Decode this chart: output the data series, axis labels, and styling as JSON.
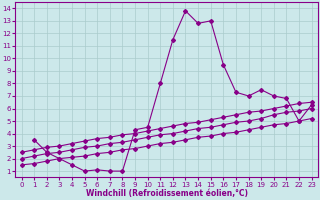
{
  "xlabel": "Windchill (Refroidissement éolien,°C)",
  "xlim": [
    -0.5,
    23.5
  ],
  "ylim": [
    0.5,
    14.5
  ],
  "xticks": [
    0,
    1,
    2,
    3,
    4,
    5,
    6,
    7,
    8,
    9,
    10,
    11,
    12,
    13,
    14,
    15,
    16,
    17,
    18,
    19,
    20,
    21,
    22,
    23
  ],
  "yticks": [
    1,
    2,
    3,
    4,
    5,
    6,
    7,
    8,
    9,
    10,
    11,
    12,
    13,
    14
  ],
  "bg_color": "#cce8ea",
  "grid_color": "#aacccc",
  "line_color": "#880088",
  "line1_x": [
    1,
    2,
    3,
    4,
    5,
    6,
    7,
    8,
    9,
    10,
    11,
    12,
    13,
    14,
    15,
    16,
    17,
    18,
    19,
    20,
    21,
    22,
    23
  ],
  "line1_y": [
    3.5,
    2.5,
    2.0,
    1.5,
    1.0,
    1.1,
    1.0,
    1.0,
    4.3,
    4.5,
    8.0,
    11.5,
    13.8,
    12.8,
    13.0,
    9.5,
    7.3,
    7.0,
    7.5,
    7.0,
    6.8,
    5.0,
    6.3
  ],
  "line2_x": [
    0,
    1,
    2,
    3,
    4,
    5,
    6,
    7,
    8,
    9,
    10,
    11,
    12,
    13,
    14,
    15,
    16,
    17,
    18,
    19,
    20,
    21,
    22,
    23
  ],
  "line2_y": [
    1.5,
    1.6,
    1.8,
    2.0,
    2.1,
    2.2,
    2.4,
    2.5,
    2.7,
    2.8,
    3.0,
    3.2,
    3.3,
    3.5,
    3.7,
    3.8,
    4.0,
    4.1,
    4.3,
    4.5,
    4.7,
    4.8,
    5.0,
    5.2
  ],
  "line3_x": [
    0,
    1,
    2,
    3,
    4,
    5,
    6,
    7,
    8,
    9,
    10,
    11,
    12,
    13,
    14,
    15,
    16,
    17,
    18,
    19,
    20,
    21,
    22,
    23
  ],
  "line3_y": [
    2.0,
    2.2,
    2.4,
    2.5,
    2.7,
    2.9,
    3.0,
    3.2,
    3.3,
    3.5,
    3.7,
    3.9,
    4.0,
    4.2,
    4.4,
    4.5,
    4.7,
    4.9,
    5.0,
    5.2,
    5.5,
    5.7,
    5.8,
    6.0
  ],
  "line4_x": [
    0,
    1,
    2,
    3,
    4,
    5,
    6,
    7,
    8,
    9,
    10,
    11,
    12,
    13,
    14,
    15,
    16,
    17,
    18,
    19,
    20,
    21,
    22,
    23
  ],
  "line4_y": [
    2.5,
    2.7,
    2.9,
    3.0,
    3.2,
    3.4,
    3.6,
    3.7,
    3.9,
    4.0,
    4.2,
    4.4,
    4.6,
    4.8,
    4.9,
    5.1,
    5.3,
    5.5,
    5.7,
    5.8,
    6.0,
    6.2,
    6.4,
    6.5
  ],
  "marker": "D",
  "markersize": 2,
  "linewidth": 0.8,
  "tick_fontsize": 5,
  "xlabel_fontsize": 5.5
}
